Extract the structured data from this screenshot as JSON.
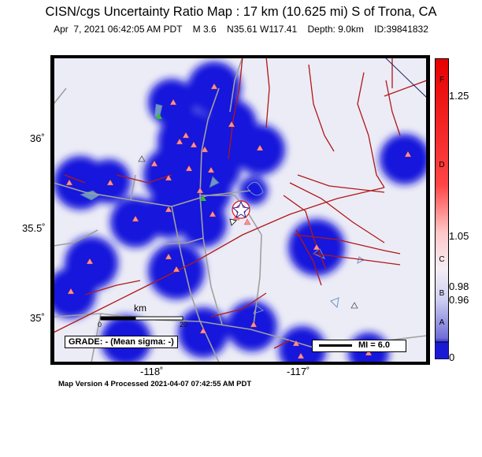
{
  "map": {
    "title": "CISN/cgs Uncertainty Ratio Map : 17 km (10.625 mi) S of Trona, CA",
    "subtitle": "Apr  7, 2021 06:42:05 AM PDT    M 3.6    N35.61 W117.41    Depth: 9.0km    ID:39841832",
    "footer": "Map Version 4 Processed 2021-04-07 07:42:55 AM PDT",
    "grade_box": "GRADE: - (Mean sigma: -)",
    "scale_label": "km",
    "scale_ticks": [
      "0",
      "20"
    ],
    "magnitude_legend": "MI = 6.0",
    "lat_labels": [
      "36˚",
      "35.5˚",
      "35˚"
    ],
    "lon_labels": [
      "-118˚",
      "-117˚"
    ],
    "colorbar": {
      "values": [
        "1.25",
        "1.05",
        "0.98",
        "0.96",
        "0"
      ],
      "letters": [
        "F",
        "D",
        "C",
        "B",
        "A"
      ],
      "colors": [
        "#e60000",
        "#ff5555",
        "#ffd0d0",
        "#e8e8f8",
        "#8888dd",
        "#1a1ad4"
      ]
    },
    "colors": {
      "low_uncertainty": "#1414dc",
      "background": "#ececf6",
      "faults": "#b01818",
      "roads": "#a0a0a0",
      "water": "#6e94c8",
      "station": "#ff9090",
      "epicenter": "#e61010"
    }
  }
}
